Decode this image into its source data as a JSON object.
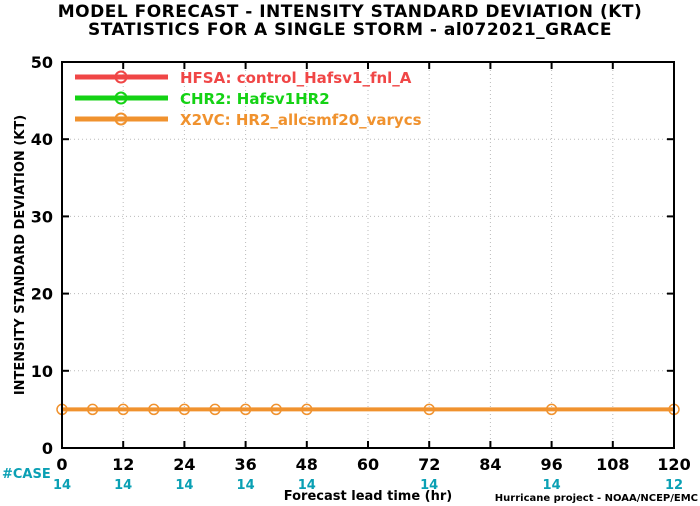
{
  "chart_data": {
    "type": "line",
    "title": "MODEL FORECAST - INTENSITY STANDARD DEVIATION (KT)",
    "subtitle": "STATISTICS FOR A SINGLE STORM - al072021_GRACE",
    "xlabel": "Forecast lead time (hr)",
    "ylabel": "INTENSITY STANDARD DEVIATION (KT)",
    "xlim": [
      0,
      120
    ],
    "ylim": [
      0,
      50
    ],
    "x_ticks": [
      0,
      12,
      24,
      36,
      48,
      60,
      72,
      84,
      96,
      108,
      120
    ],
    "y_ticks": [
      0,
      10,
      20,
      30,
      40,
      50
    ],
    "grid": true,
    "legend_position": "top-left",
    "series": [
      {
        "name": "HFSA: control_Hafsv1_fnl_A",
        "color": "#f04646",
        "x": [],
        "y": []
      },
      {
        "name": "CHR2: Hafsv1HR2",
        "color": "#14d214",
        "x": [],
        "y": []
      },
      {
        "name": "X2VC: HR2_allcsmf20_varycs",
        "color": "#f0922e",
        "x": [
          0,
          6,
          12,
          18,
          24,
          30,
          36,
          42,
          48,
          72,
          96,
          120
        ],
        "y": [
          5,
          5,
          5,
          5,
          5,
          5,
          5,
          5,
          5,
          5,
          5,
          5
        ]
      }
    ],
    "case_label": "#CASE",
    "case_positions": [
      0,
      12,
      24,
      36,
      48,
      72,
      96,
      120
    ],
    "case_counts": [
      "14",
      "14",
      "14",
      "14",
      "14",
      "14",
      "14",
      "12"
    ],
    "case_color": "#0aa0b4",
    "credit": "Hurricane project - NOAA/NCEP/EMC"
  }
}
